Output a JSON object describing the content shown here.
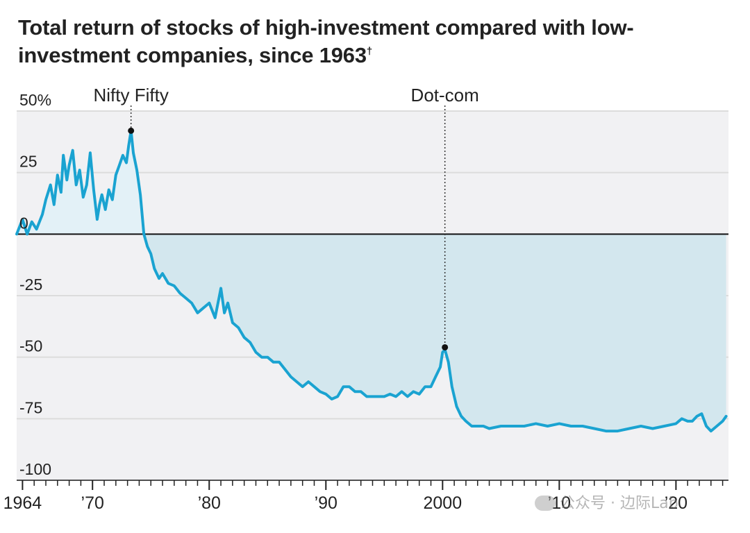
{
  "title": "Total return of stocks of high-investment compared with low-investment companies, since 1963",
  "title_footnote": "†",
  "watermark": "公众号 · 边际Lab",
  "colors": {
    "line": "#1aa3d1",
    "fill_positive": "#e3f1f7",
    "fill_negative": "#d3e7ee",
    "plot_background": "#f1f1f3",
    "zero_line": "#111111",
    "grid": "#dcdcdc",
    "annotation_dot": "#111111"
  },
  "chart_data": {
    "type": "area",
    "title": "Total return of stocks of high-investment compared with low-investment companies, since 1963",
    "xlabel": "",
    "ylabel": "",
    "xlim": [
      1963.5,
      2024.5
    ],
    "ylim": [
      -100,
      50
    ],
    "grid": true,
    "y_ticks": [
      50,
      25,
      0,
      -25,
      -50,
      -75,
      -100
    ],
    "y_tick_labels": [
      "50%",
      "25",
      "0",
      "-25",
      "-50",
      "-75",
      "-100"
    ],
    "x_ticks": [
      1964,
      1970,
      1980,
      1990,
      2000,
      2010,
      2020
    ],
    "x_tick_labels": [
      "1964",
      "’70",
      "’80",
      "’90",
      "2000",
      "’10",
      "’20"
    ],
    "annotations": [
      {
        "label": "Nifty Fifty",
        "x": 1973.3,
        "y": 42
      },
      {
        "label": "Dot-com",
        "x": 2000.2,
        "y": -46
      }
    ],
    "series": [
      {
        "x": [
          1963.5,
          1964.0,
          1964.4,
          1964.8,
          1965.2,
          1965.7,
          1966.0,
          1966.4,
          1966.7,
          1967.0,
          1967.3,
          1967.5,
          1967.8,
          1968.0,
          1968.3,
          1968.6,
          1968.9,
          1969.2,
          1969.5,
          1969.8,
          1970.1,
          1970.4,
          1970.6,
          1970.8,
          1971.1,
          1971.4,
          1971.7,
          1972.0,
          1972.3,
          1972.6,
          1972.9,
          1973.1,
          1973.3,
          1973.5,
          1973.8,
          1974.1,
          1974.4,
          1974.7,
          1975.0,
          1975.3,
          1975.7,
          1976.0,
          1976.5,
          1977.0,
          1977.5,
          1978.0,
          1978.5,
          1979.0,
          1979.5,
          1980.0,
          1980.5,
          1981.0,
          1981.3,
          1981.6,
          1982.0,
          1982.5,
          1983.0,
          1983.5,
          1984.0,
          1984.5,
          1985.0,
          1985.5,
          1986.0,
          1986.5,
          1987.0,
          1987.5,
          1988.0,
          1988.5,
          1989.0,
          1989.5,
          1990.0,
          1990.5,
          1991.0,
          1991.5,
          1992.0,
          1992.5,
          1993.0,
          1993.5,
          1994.0,
          1994.5,
          1995.0,
          1995.5,
          1996.0,
          1996.5,
          1997.0,
          1997.5,
          1998.0,
          1998.5,
          1999.0,
          1999.4,
          1999.8,
          2000.0,
          2000.2,
          2000.5,
          2000.8,
          2001.2,
          2001.6,
          2002.0,
          2002.5,
          2003.0,
          2003.5,
          2004.0,
          2005.0,
          2006.0,
          2007.0,
          2008.0,
          2009.0,
          2010.0,
          2011.0,
          2012.0,
          2013.0,
          2014.0,
          2015.0,
          2016.0,
          2017.0,
          2018.0,
          2019.0,
          2020.0,
          2020.5,
          2021.0,
          2021.4,
          2021.8,
          2022.2,
          2022.6,
          2023.0,
          2023.5,
          2024.0,
          2024.3
        ],
        "values": [
          0,
          6,
          0,
          5,
          2,
          8,
          14,
          20,
          12,
          24,
          17,
          32,
          22,
          28,
          34,
          20,
          26,
          15,
          20,
          33,
          18,
          6,
          12,
          16,
          10,
          18,
          14,
          24,
          28,
          32,
          29,
          36,
          42,
          33,
          26,
          16,
          0,
          -5,
          -8,
          -14,
          -18,
          -16,
          -20,
          -21,
          -24,
          -26,
          -28,
          -32,
          -30,
          -28,
          -34,
          -22,
          -32,
          -28,
          -36,
          -38,
          -42,
          -44,
          -48,
          -50,
          -50,
          -52,
          -52,
          -55,
          -58,
          -60,
          -62,
          -60,
          -62,
          -64,
          -65,
          -67,
          -66,
          -62,
          -62,
          -64,
          -64,
          -66,
          -66,
          -66,
          -66,
          -65,
          -66,
          -64,
          -66,
          -64,
          -65,
          -62,
          -62,
          -58,
          -54,
          -48,
          -47,
          -52,
          -62,
          -70,
          -74,
          -76,
          -78,
          -78,
          -78,
          -79,
          -78,
          -78,
          -78,
          -77,
          -78,
          -77,
          -78,
          -78,
          -79,
          -80,
          -80,
          -79,
          -78,
          -79,
          -78,
          -77,
          -75,
          -76,
          -76,
          -74,
          -73,
          -78,
          -80,
          -78,
          -76,
          -74
        ]
      }
    ]
  }
}
